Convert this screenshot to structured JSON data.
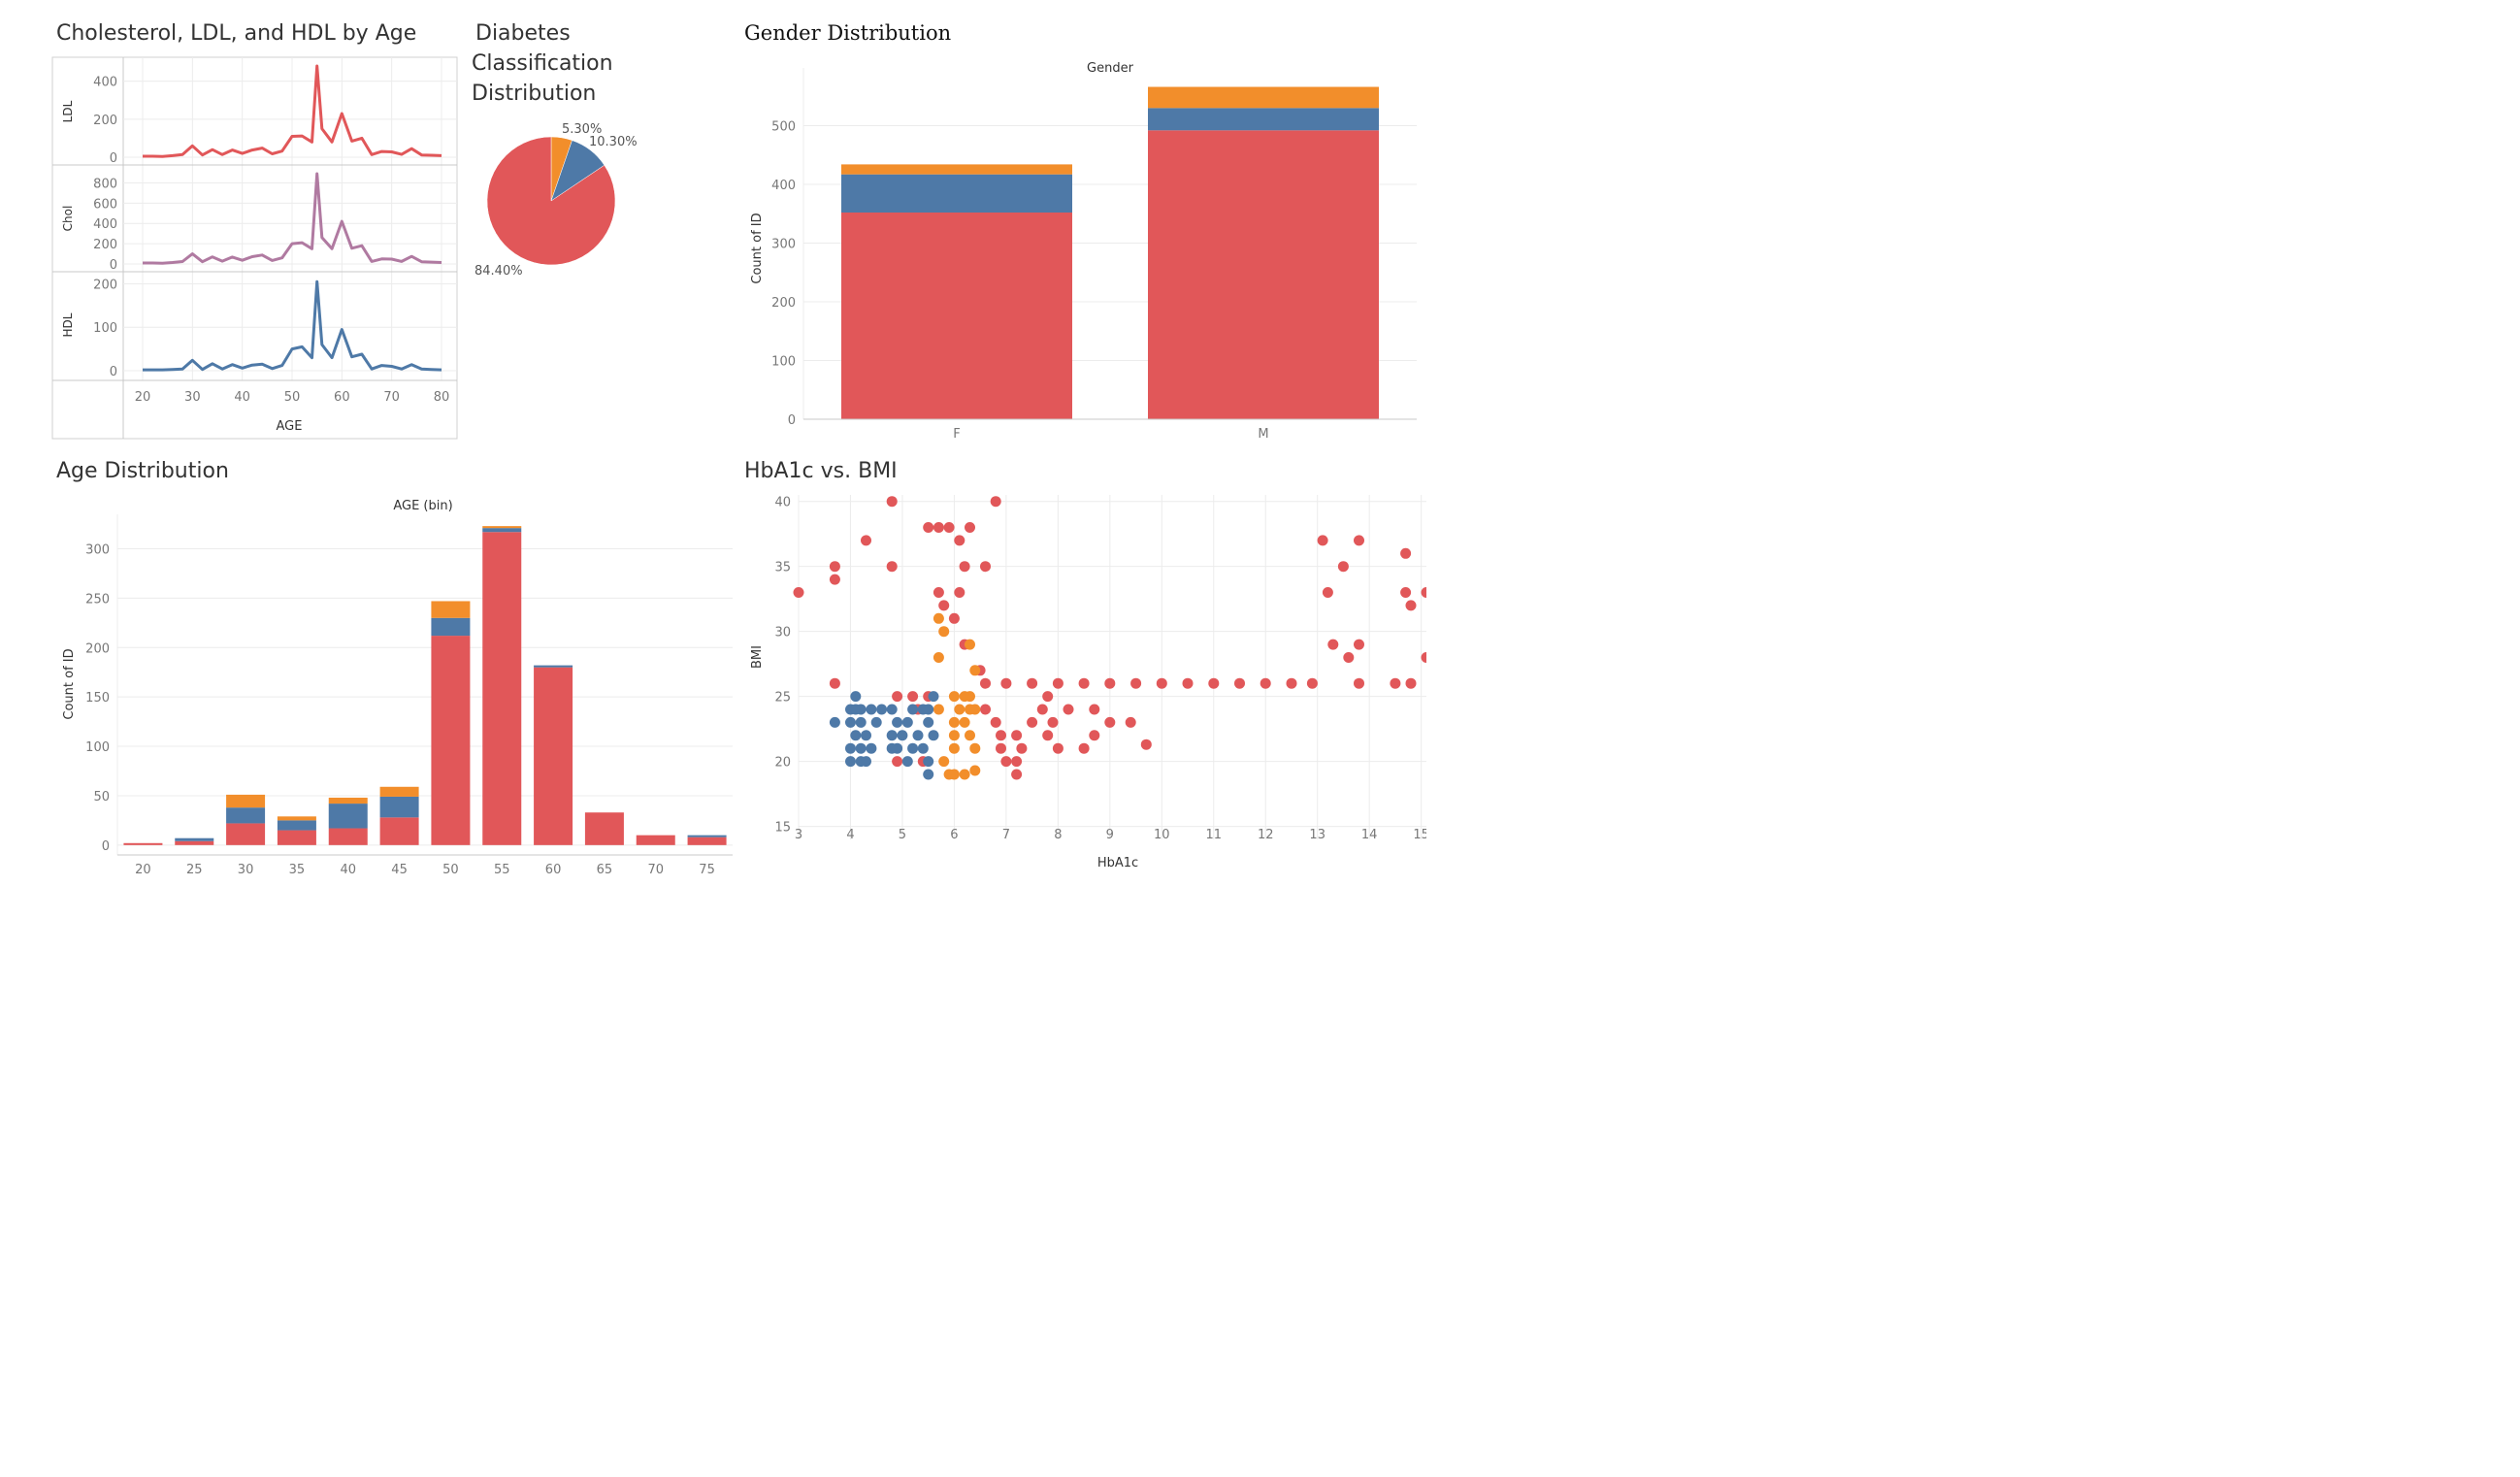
{
  "titles": {
    "lipids": "Cholesterol, LDL, and HDL by Age",
    "pie_line1": "Diabetes",
    "pie_line2": "Classification",
    "pie_line3": "Distribution",
    "gender": "Gender Distribution",
    "age": "Age Distribution",
    "scatter": "HbA1c vs. BMI"
  },
  "colors": {
    "Y": "#e15759",
    "N": "#4e79a7",
    "P": "#f28e2b",
    "chol": "#b07aa1",
    "grid": "#ececec",
    "axis": "#c8c8c8"
  },
  "chart_data": [
    {
      "type": "line",
      "title": "Cholesterol, LDL, and HDL by Age",
      "xlabel": "AGE",
      "xlim": [
        20,
        80
      ],
      "x_ticks": [
        20,
        30,
        40,
        50,
        60,
        70,
        80
      ],
      "panels": [
        {
          "name": "LDL",
          "ylabel": "LDL",
          "ylim": [
            0,
            480
          ],
          "y_ticks": [
            0,
            200,
            400
          ],
          "color": "#e15759",
          "x": [
            20,
            22,
            24,
            26,
            28,
            30,
            32,
            34,
            36,
            38,
            40,
            42,
            44,
            46,
            48,
            50,
            52,
            54,
            55,
            56,
            58,
            60,
            62,
            64,
            66,
            68,
            70,
            72,
            74,
            76,
            78,
            80
          ],
          "y": [
            5,
            5,
            4,
            8,
            14,
            60,
            12,
            40,
            14,
            38,
            20,
            38,
            48,
            18,
            32,
            110,
            112,
            80,
            480,
            150,
            80,
            230,
            85,
            100,
            14,
            30,
            28,
            15,
            45,
            12,
            10,
            8
          ]
        },
        {
          "name": "Chol",
          "ylabel": "Chol",
          "ylim": [
            0,
            900
          ],
          "y_ticks": [
            0,
            200,
            400,
            600,
            800
          ],
          "color": "#b07aa1",
          "x": [
            20,
            22,
            24,
            26,
            28,
            30,
            32,
            34,
            36,
            38,
            40,
            42,
            44,
            46,
            48,
            50,
            52,
            54,
            55,
            56,
            58,
            60,
            62,
            64,
            66,
            68,
            70,
            72,
            74,
            76,
            78,
            80
          ],
          "y": [
            10,
            10,
            8,
            14,
            24,
            100,
            22,
            70,
            28,
            68,
            36,
            72,
            88,
            34,
            60,
            200,
            210,
            150,
            890,
            260,
            150,
            420,
            155,
            180,
            25,
            50,
            48,
            25,
            75,
            22,
            18,
            14
          ]
        },
        {
          "name": "HDL",
          "ylabel": "HDL",
          "ylim": [
            0,
            210
          ],
          "y_ticks": [
            0,
            100,
            200
          ],
          "color": "#4e79a7",
          "x": [
            20,
            22,
            24,
            26,
            28,
            30,
            32,
            34,
            36,
            38,
            40,
            42,
            44,
            46,
            48,
            50,
            52,
            54,
            55,
            56,
            58,
            60,
            62,
            64,
            66,
            68,
            70,
            72,
            74,
            76,
            78,
            80
          ],
          "y": [
            2,
            2,
            2,
            3,
            4,
            24,
            3,
            16,
            4,
            14,
            6,
            13,
            15,
            5,
            12,
            50,
            55,
            30,
            205,
            60,
            30,
            95,
            32,
            38,
            4,
            12,
            10,
            4,
            14,
            4,
            3,
            2
          ]
        }
      ]
    },
    {
      "type": "pie",
      "title": "Diabetes Classification Distribution",
      "slices": [
        {
          "class": "Y",
          "value": 84.4,
          "label": "84.40%"
        },
        {
          "class": "P",
          "value": 5.3,
          "label": "5.30%"
        },
        {
          "class": "N",
          "value": 10.3,
          "label": "10.30%"
        }
      ]
    },
    {
      "type": "bar",
      "stacked": true,
      "title": "Gender Distribution",
      "header": "Gender",
      "ylabel": "Count of ID",
      "categories": [
        "F",
        "M"
      ],
      "ylim": [
        0,
        590
      ],
      "y_ticks": [
        0,
        100,
        200,
        300,
        400,
        500
      ],
      "series": [
        {
          "class": "Y",
          "values": [
            352,
            492
          ]
        },
        {
          "class": "N",
          "values": [
            65,
            38
          ]
        },
        {
          "class": "P",
          "values": [
            17,
            36
          ]
        }
      ]
    },
    {
      "type": "bar",
      "stacked": true,
      "title": "Age Distribution",
      "header": "AGE (bin)",
      "ylabel": "Count of ID",
      "categories": [
        "20",
        "25",
        "30",
        "35",
        "40",
        "45",
        "50",
        "55",
        "60",
        "65",
        "70",
        "75"
      ],
      "ylim": [
        -10,
        330
      ],
      "y_ticks": [
        0,
        50,
        100,
        150,
        200,
        250,
        300
      ],
      "series": [
        {
          "class": "Y",
          "values": [
            2,
            4,
            22,
            15,
            17,
            28,
            212,
            317,
            180,
            33,
            10,
            8
          ]
        },
        {
          "class": "N",
          "values": [
            0,
            3,
            16,
            10,
            25,
            21,
            18,
            4,
            2,
            0,
            0,
            2
          ]
        },
        {
          "class": "P",
          "values": [
            0,
            0,
            13,
            4,
            6,
            10,
            17,
            2,
            0,
            0,
            0,
            0
          ]
        }
      ]
    },
    {
      "type": "scatter",
      "title": "HbA1c vs. BMI",
      "xlabel": "HbA1c",
      "ylabel": "BMI",
      "xlim": [
        3,
        15.1
      ],
      "ylim": [
        14,
        40.5
      ],
      "x_ticks": [
        3,
        4,
        5,
        6,
        7,
        8,
        9,
        10,
        11,
        12,
        13,
        14,
        15
      ],
      "y_ticks": [
        15,
        20,
        25,
        30,
        35,
        40
      ],
      "points": {
        "N": [
          [
            4,
            24
          ],
          [
            4.1,
            24
          ],
          [
            4.2,
            24
          ],
          [
            4.4,
            24
          ],
          [
            4,
            23
          ],
          [
            4.2,
            23
          ],
          [
            4.5,
            23
          ],
          [
            4.1,
            22
          ],
          [
            4.3,
            22
          ],
          [
            4,
            21
          ],
          [
            4.2,
            21
          ],
          [
            4.4,
            21
          ],
          [
            4,
            20
          ],
          [
            4.2,
            20
          ],
          [
            4.3,
            20
          ],
          [
            4.6,
            24
          ],
          [
            4.8,
            24
          ],
          [
            4.9,
            23
          ],
          [
            4.8,
            22
          ],
          [
            4.9,
            21
          ],
          [
            4.8,
            21
          ],
          [
            5.2,
            24
          ],
          [
            5.1,
            23
          ],
          [
            5,
            22
          ],
          [
            5.2,
            21
          ],
          [
            5.1,
            20
          ],
          [
            5.4,
            24
          ],
          [
            5.5,
            23
          ],
          [
            5.3,
            22
          ],
          [
            5.4,
            21
          ],
          [
            5.5,
            20
          ],
          [
            5.5,
            19
          ],
          [
            5.6,
            25
          ],
          [
            5.5,
            24
          ],
          [
            5.6,
            22
          ],
          [
            3.7,
            23
          ],
          [
            4.1,
            25
          ]
        ],
        "P": [
          [
            5.7,
            31
          ],
          [
            5.8,
            30
          ],
          [
            5.7,
            28
          ],
          [
            6,
            25
          ],
          [
            6.2,
            25
          ],
          [
            6.3,
            25
          ],
          [
            6.1,
            24
          ],
          [
            6.3,
            24
          ],
          [
            6.4,
            24
          ],
          [
            6,
            23
          ],
          [
            6.2,
            23
          ],
          [
            6,
            22
          ],
          [
            6.3,
            22
          ],
          [
            6,
            21
          ],
          [
            6.4,
            21
          ],
          [
            5.9,
            19
          ],
          [
            6,
            19
          ],
          [
            6.2,
            19
          ],
          [
            6.4,
            19.3
          ],
          [
            5.8,
            20
          ],
          [
            5.7,
            24
          ],
          [
            6.4,
            27
          ],
          [
            6.3,
            29
          ]
        ],
        "Y": [
          [
            3,
            33
          ],
          [
            3.7,
            35
          ],
          [
            3.7,
            34
          ],
          [
            3.7,
            26
          ],
          [
            4.3,
            37
          ],
          [
            4.8,
            40
          ],
          [
            4.8,
            35
          ],
          [
            5.5,
            38
          ],
          [
            5.7,
            38
          ],
          [
            5.9,
            38
          ],
          [
            6.1,
            37
          ],
          [
            6.3,
            38
          ],
          [
            6.8,
            40
          ],
          [
            6.2,
            35
          ],
          [
            6.6,
            35
          ],
          [
            5.7,
            33
          ],
          [
            6.1,
            33
          ],
          [
            5.8,
            32
          ],
          [
            6,
            31
          ],
          [
            6.2,
            29
          ],
          [
            6.5,
            27
          ],
          [
            6.6,
            26
          ],
          [
            6.6,
            24
          ],
          [
            6.8,
            23
          ],
          [
            6.9,
            22
          ],
          [
            6.9,
            21
          ],
          [
            7,
            20
          ],
          [
            7.2,
            19
          ],
          [
            7.2,
            20
          ],
          [
            7.3,
            21
          ],
          [
            7.2,
            22
          ],
          [
            7.5,
            23
          ],
          [
            7.7,
            24
          ],
          [
            7.9,
            23
          ],
          [
            7.8,
            22
          ],
          [
            8,
            21
          ],
          [
            8.5,
            21
          ],
          [
            8.7,
            22
          ],
          [
            9,
            23
          ],
          [
            9.4,
            23
          ],
          [
            9.7,
            21.3
          ],
          [
            8.2,
            24
          ],
          [
            8.7,
            24
          ],
          [
            7.8,
            25
          ],
          [
            7,
            26
          ],
          [
            7.5,
            26
          ],
          [
            8,
            26
          ],
          [
            8.5,
            26
          ],
          [
            9,
            26
          ],
          [
            9.5,
            26
          ],
          [
            10,
            26
          ],
          [
            10.5,
            26
          ],
          [
            11,
            26
          ],
          [
            11.5,
            26
          ],
          [
            12,
            26
          ],
          [
            12.5,
            26
          ],
          [
            12.9,
            26
          ],
          [
            13.8,
            26
          ],
          [
            14.5,
            26
          ],
          [
            14.8,
            26
          ],
          [
            4.9,
            25
          ],
          [
            5.2,
            25
          ],
          [
            5.5,
            25
          ],
          [
            5.3,
            24
          ],
          [
            5.4,
            20
          ],
          [
            4.9,
            20
          ],
          [
            14.7,
            36
          ],
          [
            14.7,
            33
          ],
          [
            14.8,
            32
          ],
          [
            15.1,
            33
          ],
          [
            15.1,
            28
          ],
          [
            13.3,
            29
          ],
          [
            13.8,
            29
          ],
          [
            13.6,
            28
          ],
          [
            13.2,
            33
          ],
          [
            13.5,
            35
          ],
          [
            13.8,
            37
          ],
          [
            13.1,
            37
          ]
        ]
      }
    }
  ]
}
